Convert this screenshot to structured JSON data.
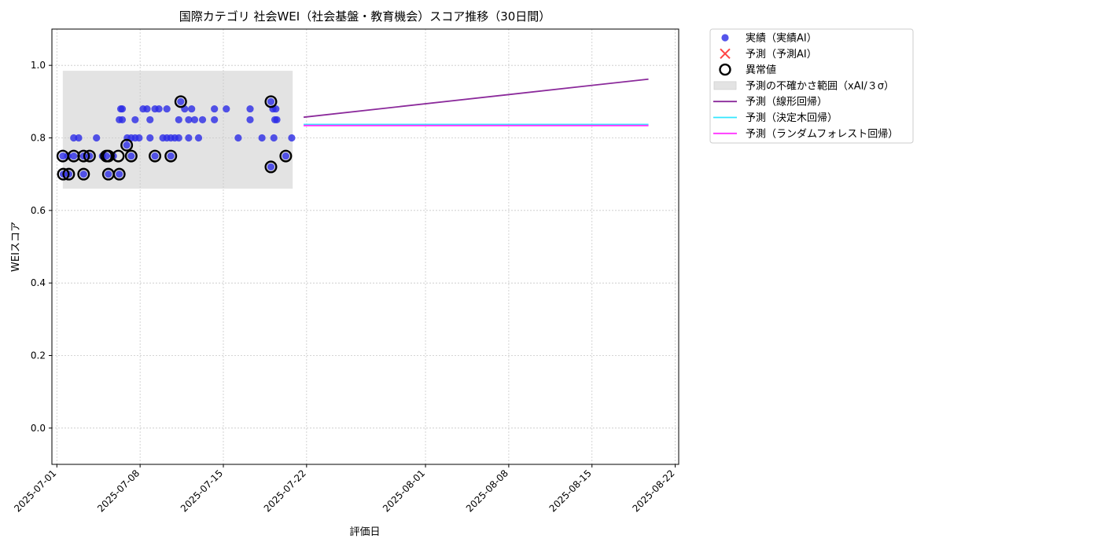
{
  "chart_data": {
    "type": "scatter",
    "title": "国際カテゴリ 社会WEI（社会基盤・教育機会）スコア推移（30日間）",
    "xlabel": "評価日",
    "ylabel": "WEIスコア",
    "xlim": [
      "2025-06-30T14:00",
      "2025-08-22T07:00"
    ],
    "ylim": [
      -0.1,
      1.1
    ],
    "grid": true,
    "legend_position": "outside-top-right",
    "x_ticks": [
      "2025-07-01",
      "2025-07-08",
      "2025-07-15",
      "2025-07-22",
      "2025-08-01",
      "2025-08-08",
      "2025-08-15",
      "2025-08-22"
    ],
    "y_ticks": [
      "0.0",
      "0.2",
      "0.4",
      "0.6",
      "0.8",
      "1.0"
    ],
    "y_tick_values": [
      0.0,
      0.2,
      0.4,
      0.6,
      0.8,
      1.0
    ],
    "uncertainty_band": {
      "label": "予測の不確かさ範囲（xAI/３σ）",
      "x": [
        "2025-07-01T12:00",
        "2025-07-20T20:00"
      ],
      "y": [
        0.66,
        0.985
      ],
      "color": "#e3e3e3"
    },
    "series": [
      {
        "name": "実績（実績AI）",
        "kind": "scatter",
        "color": "#2a2ae6",
        "points": [
          [
            "2025-07-01T12:00",
            0.75
          ],
          [
            "2025-07-01T13:00",
            0.7
          ],
          [
            "2025-07-01T22:00",
            0.75
          ],
          [
            "2025-07-02T00:00",
            0.7
          ],
          [
            "2025-07-02T10:00",
            0.75
          ],
          [
            "2025-07-02T10:00",
            0.8
          ],
          [
            "2025-07-02T20:00",
            0.8
          ],
          [
            "2025-07-03T06:00",
            0.75
          ],
          [
            "2025-07-03T06:00",
            0.7
          ],
          [
            "2025-07-03T18:00",
            0.75
          ],
          [
            "2025-07-04T08:00",
            0.8
          ],
          [
            "2025-07-04T20:00",
            0.75
          ],
          [
            "2025-07-05T04:00",
            0.75
          ],
          [
            "2025-07-05T08:00",
            0.7
          ],
          [
            "2025-07-05T18:00",
            0.75
          ],
          [
            "2025-07-06T06:00",
            0.7
          ],
          [
            "2025-07-06T06:00",
            0.85
          ],
          [
            "2025-07-06T09:00",
            0.88
          ],
          [
            "2025-07-06T12:00",
            0.88
          ],
          [
            "2025-07-06T12:00",
            0.85
          ],
          [
            "2025-07-06T21:00",
            0.78
          ],
          [
            "2025-07-06T22:00",
            0.8
          ],
          [
            "2025-07-07T06:00",
            0.75
          ],
          [
            "2025-07-07T06:00",
            0.8
          ],
          [
            "2025-07-07T14:00",
            0.85
          ],
          [
            "2025-07-07T14:00",
            0.8
          ],
          [
            "2025-07-07T22:00",
            0.8
          ],
          [
            "2025-07-08T06:00",
            0.88
          ],
          [
            "2025-07-08T14:00",
            0.88
          ],
          [
            "2025-07-08T20:00",
            0.85
          ],
          [
            "2025-07-08T20:00",
            0.8
          ],
          [
            "2025-07-09T06:00",
            0.75
          ],
          [
            "2025-07-09T06:00",
            0.88
          ],
          [
            "2025-07-09T14:00",
            0.88
          ],
          [
            "2025-07-09T22:00",
            0.8
          ],
          [
            "2025-07-10T06:00",
            0.88
          ],
          [
            "2025-07-10T06:00",
            0.8
          ],
          [
            "2025-07-10T14:00",
            0.75
          ],
          [
            "2025-07-10T14:00",
            0.8
          ],
          [
            "2025-07-10T22:00",
            0.8
          ],
          [
            "2025-07-11T06:00",
            0.85
          ],
          [
            "2025-07-11T06:00",
            0.8
          ],
          [
            "2025-07-11T10:00",
            0.9
          ],
          [
            "2025-07-11T18:00",
            0.88
          ],
          [
            "2025-07-12T02:00",
            0.85
          ],
          [
            "2025-07-12T02:00",
            0.8
          ],
          [
            "2025-07-12T08:00",
            0.88
          ],
          [
            "2025-07-12T14:00",
            0.85
          ],
          [
            "2025-07-12T22:00",
            0.8
          ],
          [
            "2025-07-13T06:00",
            0.85
          ],
          [
            "2025-07-14T06:00",
            0.88
          ],
          [
            "2025-07-14T06:00",
            0.85
          ],
          [
            "2025-07-15T06:00",
            0.88
          ],
          [
            "2025-07-16T06:00",
            0.8
          ],
          [
            "2025-07-17T06:00",
            0.88
          ],
          [
            "2025-07-17T06:00",
            0.85
          ],
          [
            "2025-07-18T06:00",
            0.8
          ],
          [
            "2025-07-19T00:00",
            0.9
          ],
          [
            "2025-07-19T00:00",
            0.72
          ],
          [
            "2025-07-19T04:00",
            0.88
          ],
          [
            "2025-07-19T06:00",
            0.8
          ],
          [
            "2025-07-19T08:00",
            0.85
          ],
          [
            "2025-07-19T10:00",
            0.88
          ],
          [
            "2025-07-19T12:00",
            0.85
          ],
          [
            "2025-07-20T06:00",
            0.75
          ],
          [
            "2025-07-20T18:00",
            0.8
          ]
        ]
      },
      {
        "name": "予測（予測AI）",
        "kind": "marker-x",
        "color": "#ff4444",
        "points": []
      },
      {
        "name": "異常値",
        "kind": "outlier-ring",
        "color": "#000000",
        "points": [
          [
            "2025-07-01T12:00",
            0.75
          ],
          [
            "2025-07-01T13:00",
            0.7
          ],
          [
            "2025-07-02T00:00",
            0.7
          ],
          [
            "2025-07-02T10:00",
            0.75
          ],
          [
            "2025-07-03T06:00",
            0.75
          ],
          [
            "2025-07-03T06:00",
            0.7
          ],
          [
            "2025-07-03T18:00",
            0.75
          ],
          [
            "2025-07-05T04:00",
            0.75
          ],
          [
            "2025-07-05T08:00",
            0.7
          ],
          [
            "2025-07-05T08:00",
            0.75
          ],
          [
            "2025-07-06T04:00",
            0.75
          ],
          [
            "2025-07-06T06:00",
            0.7
          ],
          [
            "2025-07-06T21:00",
            0.78
          ],
          [
            "2025-07-07T06:00",
            0.75
          ],
          [
            "2025-07-09T06:00",
            0.75
          ],
          [
            "2025-07-10T14:00",
            0.75
          ],
          [
            "2025-07-11T10:00",
            0.9
          ],
          [
            "2025-07-19T00:00",
            0.9
          ],
          [
            "2025-07-19T00:00",
            0.72
          ],
          [
            "2025-07-20T06:00",
            0.75
          ]
        ]
      },
      {
        "name": "予測（線形回帰）",
        "kind": "line",
        "color": "#8b2a9b",
        "points": [
          [
            "2025-07-21T18:00",
            0.857
          ],
          [
            "2025-08-19T18:00",
            0.962
          ]
        ]
      },
      {
        "name": "予測（決定木回帰）",
        "kind": "line",
        "color": "#33e6ff",
        "points": [
          [
            "2025-07-21T18:00",
            0.837
          ],
          [
            "2025-08-19T18:00",
            0.837
          ]
        ]
      },
      {
        "name": "予測（ランダムフォレスト回帰）",
        "kind": "line",
        "color": "#ff33ff",
        "points": [
          [
            "2025-07-21T18:00",
            0.834
          ],
          [
            "2025-08-19T18:00",
            0.834
          ]
        ]
      }
    ]
  }
}
